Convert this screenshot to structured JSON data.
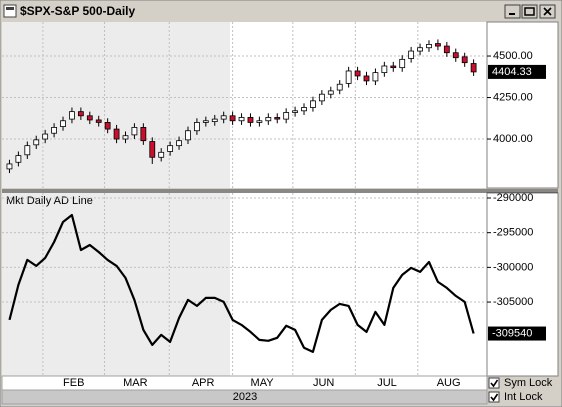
{
  "window": {
    "title": "$SPX-S&P 500-Daily"
  },
  "chart_data": [
    {
      "type": "candlestick",
      "open": [
        3820,
        3860,
        3905,
        3965,
        4000,
        4035,
        4075,
        4120,
        4165,
        4140,
        4115,
        4100,
        4060,
        4000,
        4025,
        4070,
        3985,
        3890,
        3925,
        3960,
        3995,
        4050,
        4100,
        4105,
        4120,
        4140,
        4110,
        4130,
        4100,
        4110,
        4130,
        4120,
        4160,
        4170,
        4190,
        4230,
        4270,
        4295,
        4335,
        4410,
        4380,
        4350,
        4400,
        4440,
        4430,
        4485,
        4530,
        4550,
        4575,
        4560,
        4520,
        4495,
        4455
      ],
      "high": [
        3875,
        3925,
        3985,
        4020,
        4055,
        4095,
        4135,
        4190,
        4190,
        4165,
        4140,
        4125,
        4085,
        4045,
        4095,
        4095,
        4010,
        3945,
        3985,
        4015,
        4075,
        4125,
        4135,
        4145,
        4165,
        4165,
        4155,
        4155,
        4135,
        4155,
        4155,
        4185,
        4195,
        4215,
        4255,
        4295,
        4315,
        4355,
        4435,
        4435,
        4405,
        4425,
        4465,
        4465,
        4505,
        4555,
        4575,
        4595,
        4600,
        4585,
        4545,
        4520,
        4480
      ],
      "low": [
        3795,
        3835,
        3880,
        3940,
        3975,
        4010,
        4050,
        4095,
        4115,
        4090,
        4075,
        4035,
        3975,
        3975,
        4000,
        3965,
        3850,
        3865,
        3900,
        3935,
        3970,
        4025,
        4075,
        4080,
        4095,
        4085,
        4085,
        4075,
        4075,
        4085,
        4095,
        4095,
        4135,
        4145,
        4165,
        4205,
        4245,
        4270,
        4310,
        4355,
        4325,
        4325,
        4375,
        4405,
        4405,
        4460,
        4505,
        4525,
        4535,
        4495,
        4465,
        4435,
        4380
      ],
      "close": [
        3850,
        3900,
        3960,
        3995,
        4030,
        4070,
        4110,
        4165,
        4140,
        4115,
        4100,
        4060,
        4000,
        4020,
        4070,
        3990,
        3890,
        3920,
        3960,
        3990,
        4050,
        4100,
        4110,
        4120,
        4140,
        4110,
        4130,
        4100,
        4110,
        4130,
        4120,
        4160,
        4170,
        4190,
        4230,
        4270,
        4290,
        4330,
        4410,
        4380,
        4350,
        4400,
        4440,
        4430,
        4480,
        4530,
        4550,
        4570,
        4560,
        4520,
        4490,
        4460,
        4404.33
      ],
      "up_color": "#ffffff",
      "down_color": "#c8102e",
      "xlim": [
        -0.5,
        53.5
      ],
      "ylim": [
        3705,
        4705
      ],
      "yticks": [
        {
          "value": 4000,
          "label": "4000.00"
        },
        {
          "value": 4250,
          "label": "4250.00"
        },
        {
          "value": 4500,
          "label": "4500.00"
        }
      ],
      "grid": true
    },
    {
      "type": "line",
      "title": "Mkt Daily AD Line",
      "color": "#000000",
      "values": [
        -307570,
        -302530,
        -298930,
        -299790,
        -298640,
        -296340,
        -293460,
        -292450,
        -297490,
        -296770,
        -297780,
        -298930,
        -299790,
        -301520,
        -304690,
        -309010,
        -311170,
        -309730,
        -310740,
        -307280,
        -304690,
        -305550,
        -304400,
        -304400,
        -304980,
        -307570,
        -308290,
        -309300,
        -310450,
        -310590,
        -310160,
        -308430,
        -309010,
        -311600,
        -312180,
        -307570,
        -306130,
        -305260,
        -305550,
        -308290,
        -309300,
        -306420,
        -308290,
        -302960,
        -301090,
        -300080,
        -300660,
        -299220,
        -302100,
        -302960,
        -304110,
        -304980,
        -309540
      ],
      "xlim": [
        -0.5,
        53.5
      ],
      "xticks": [
        {
          "value": 7.2,
          "label": "FEB"
        },
        {
          "value": 14.1,
          "label": "MAR"
        },
        {
          "value": 21.7,
          "label": "APR"
        },
        {
          "value": 28.3,
          "label": "MAY"
        },
        {
          "value": 35.2,
          "label": "JUN"
        },
        {
          "value": 42.3,
          "label": "JUL"
        },
        {
          "value": 49.2,
          "label": "AUG"
        }
      ],
      "xlabel": "2023",
      "ylim": [
        -315660,
        -289280
      ],
      "yticks": [
        -290000,
        -295000,
        -300000,
        -305000
      ],
      "grid": true
    }
  ],
  "controls": [
    {
      "label": "Sym Lock",
      "checked": true
    },
    {
      "label": "Int Lock",
      "checked": true
    }
  ]
}
